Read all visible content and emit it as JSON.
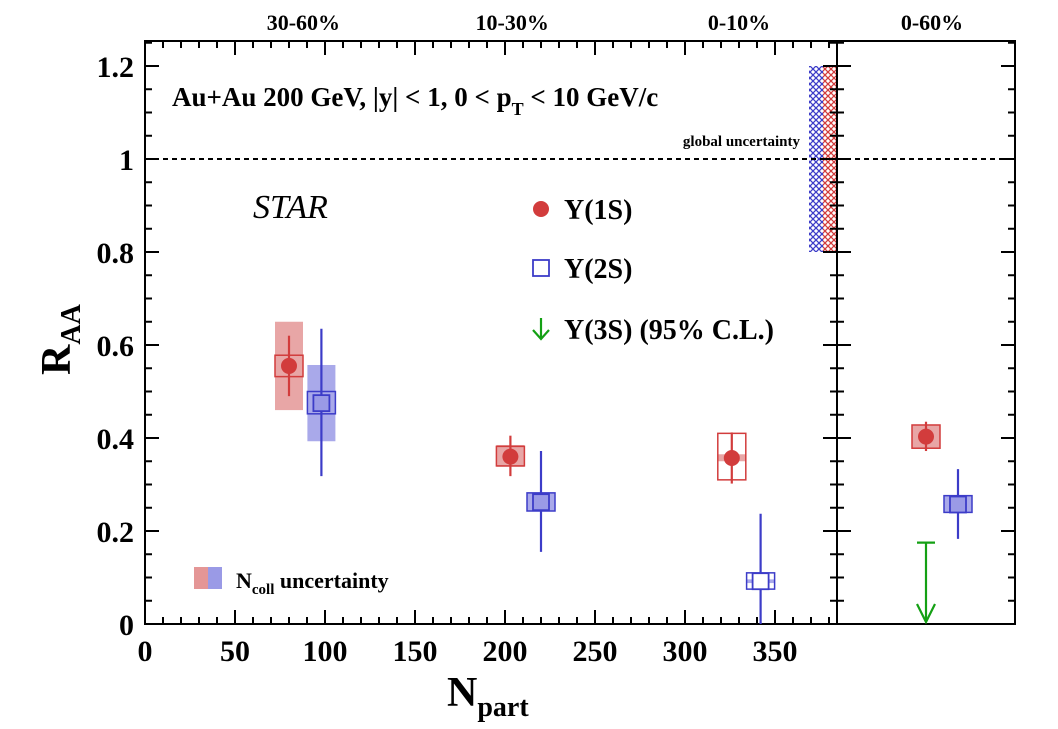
{
  "chart_data": {
    "type": "scatter",
    "title": "Au+Au 200 GeV, |y| < 1, 0 < p",
    "title_sub": "T",
    "title_tail": " < 10 GeV/c",
    "experiment_label": "STAR",
    "global_uncertainty_label": "global uncertainty",
    "xlabel_main": "N",
    "xlabel_sub": "part",
    "ylabel_main": "R",
    "ylabel_sub": "AA",
    "xlim": [
      0,
      380
    ],
    "ylim": [
      0,
      1.25
    ],
    "x_ticks": [
      {
        "value": 0,
        "label": "0"
      },
      {
        "value": 50,
        "label": "50"
      },
      {
        "value": 100,
        "label": "100"
      },
      {
        "value": 150,
        "label": "150"
      },
      {
        "value": 200,
        "label": "200"
      },
      {
        "value": 250,
        "label": "250"
      },
      {
        "value": 300,
        "label": "300"
      },
      {
        "value": 350,
        "label": "350"
      }
    ],
    "y_ticks": [
      {
        "value": 0,
        "label": "0"
      },
      {
        "value": 0.2,
        "label": "0.2"
      },
      {
        "value": 0.4,
        "label": "0.4"
      },
      {
        "value": 0.6,
        "label": "0.6"
      },
      {
        "value": 0.8,
        "label": "0.8"
      },
      {
        "value": 1.0,
        "label": "1"
      },
      {
        "value": 1.2,
        "label": "1.2"
      }
    ],
    "centrality_labels": [
      {
        "npart": 88,
        "label": "30-60%"
      },
      {
        "npart": 204,
        "label": "10-30%"
      },
      {
        "npart": 330,
        "label": "0-10%"
      }
    ],
    "integrated_label": "0-60%",
    "reference_line": 1.0,
    "global_uncertainty": {
      "low": 0.8,
      "high": 1.2
    },
    "legend": [
      {
        "key": "1S",
        "label": "Υ(1S)"
      },
      {
        "key": "2S",
        "label": "Υ(2S)"
      },
      {
        "key": "3S",
        "label": "Υ(3S) (95% C.L.)"
      }
    ],
    "ncoll_label_main": "N",
    "ncoll_label_sub": "coll",
    "ncoll_label_tail": " uncertainty",
    "series": [
      {
        "name": "Υ(1S)",
        "key": "1S",
        "points": [
          {
            "x": 80,
            "y": 0.555,
            "stat": [
              0.49,
              0.62
            ],
            "sys": [
              0.532,
              0.578
            ],
            "ncoll": [
              0.46,
              0.65
            ],
            "xw": 8
          },
          {
            "x": 203,
            "y": 0.36,
            "stat": [
              0.318,
              0.405
            ],
            "sys": [
              0.34,
              0.382
            ],
            "ncoll": [
              0.338,
              0.385
            ],
            "xw": 8
          },
          {
            "x": 326,
            "y": 0.357,
            "stat": [
              0.302,
              0.412
            ],
            "sys": [
              0.31,
              0.41
            ],
            "ncoll": [
              0.35,
              0.365
            ],
            "xw": 8
          }
        ],
        "integrated": {
          "y": 0.403,
          "stat": [
            0.372,
            0.435
          ],
          "sys": [
            0.378,
            0.428
          ],
          "ncoll": [
            0.378,
            0.428
          ]
        }
      },
      {
        "name": "Υ(2S)",
        "key": "2S",
        "points": [
          {
            "x": 98,
            "y": 0.475,
            "stat": [
              0.318,
              0.635
            ],
            "sys": [
              0.452,
              0.5
            ],
            "ncoll": [
              0.393,
              0.557
            ],
            "xw": 8
          },
          {
            "x": 220,
            "y": 0.262,
            "stat": [
              0.155,
              0.372
            ],
            "sys": [
              0.243,
              0.282
            ],
            "ncoll": [
              0.243,
              0.282
            ],
            "xw": 8
          },
          {
            "x": 342,
            "y": 0.092,
            "stat": [
              0.0,
              0.237
            ],
            "sys": [
              0.075,
              0.11
            ],
            "ncoll": [
              0.088,
              0.096
            ],
            "xw": 8
          }
        ],
        "integrated": {
          "y": 0.257,
          "stat": [
            0.183,
            0.333
          ],
          "sys": [
            0.24,
            0.276
          ],
          "ncoll": [
            0.24,
            0.276
          ]
        }
      },
      {
        "name": "Υ(3S) (95% C.L.)",
        "key": "3S",
        "upper_limit_integrated": 0.175
      }
    ]
  },
  "colors": {
    "red": "#d23c3c",
    "red_fill": "#e49696",
    "blue": "#3c3cc8",
    "blue_fill": "#9a9ae6",
    "green": "#14a014"
  }
}
